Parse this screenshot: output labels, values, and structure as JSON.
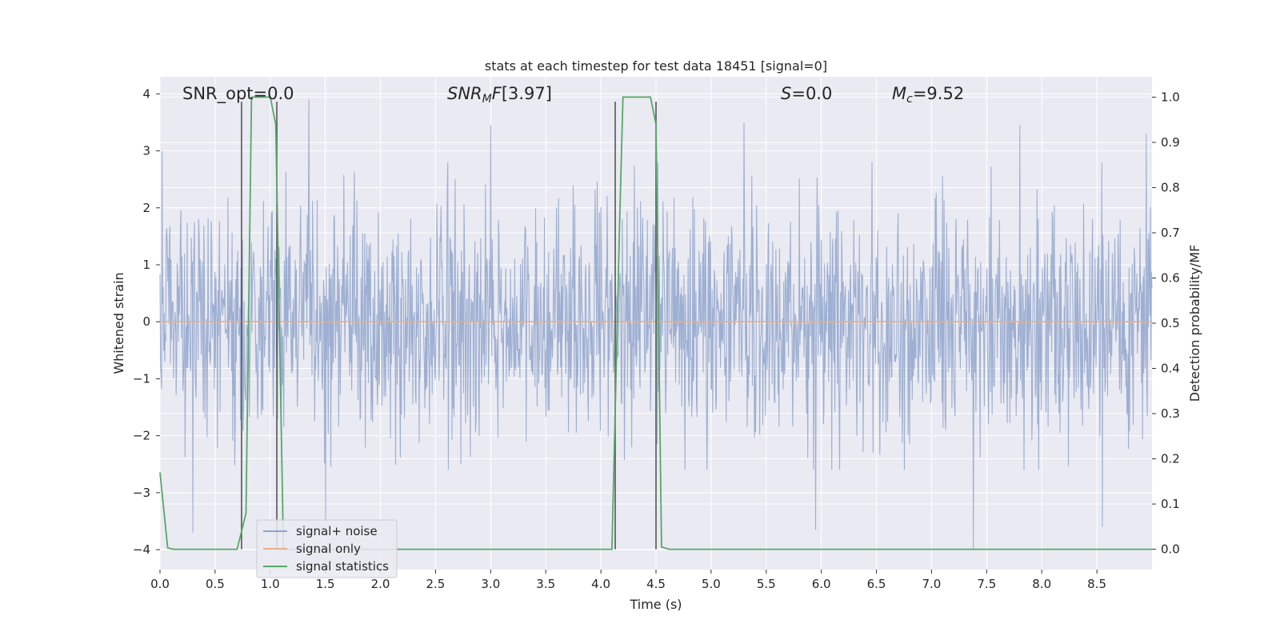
{
  "chart_data": {
    "type": "line",
    "title": "stats at each timestep for test data 18451 [signal=0]",
    "xlabel": "Time (s)",
    "ylabel_left": "Whitened strain",
    "ylabel_right": "Detection probability/MF",
    "xlim": [
      0,
      9.0
    ],
    "ylim_left": [
      -4.35,
      4.3
    ],
    "ylim_right": [
      -0.045,
      1.045
    ],
    "x_ticks": [
      "0.0",
      "0.5",
      "1.0",
      "1.5",
      "2.0",
      "2.5",
      "3.0",
      "3.5",
      "4.0",
      "4.5",
      "5.0",
      "5.5",
      "6.0",
      "6.5",
      "7.0",
      "7.5",
      "8.0",
      "8.5"
    ],
    "y_ticks_left": [
      "−4",
      "−3",
      "−2",
      "−1",
      "0",
      "1",
      "2",
      "3",
      "4"
    ],
    "y_ticks_right": [
      "0.0",
      "0.1",
      "0.2",
      "0.3",
      "0.4",
      "0.5",
      "0.6",
      "0.7",
      "0.8",
      "0.9",
      "1.0"
    ],
    "grid": true,
    "legend_position": "lower-left",
    "annotations": {
      "snr_opt": "SNR_opt=0.0",
      "snr_mf": "[3.97]",
      "s_value": "=0.0",
      "mc_value": "=9.52"
    },
    "series": [
      {
        "name": "signal+ noise",
        "axis": "left",
        "color": "#8fa4cc",
        "description": "whitened noise trace, roughly within -2 to +2.5 with spikes to ±4",
        "peaks": [
          {
            "x": 0.02,
            "y": 3.0
          },
          {
            "x": 0.3,
            "y": 3.05
          },
          {
            "x": 1.35,
            "y": 3.9
          },
          {
            "x": 3.0,
            "y": 3.45
          },
          {
            "x": 5.3,
            "y": 3.5
          },
          {
            "x": 7.8,
            "y": 3.45
          },
          {
            "x": 8.95,
            "y": 3.3
          },
          {
            "x": 0.3,
            "y": -3.7
          },
          {
            "x": 1.5,
            "y": -3.5
          },
          {
            "x": 5.95,
            "y": -3.65
          },
          {
            "x": 7.38,
            "y": -4.0
          },
          {
            "x": 8.55,
            "y": -3.6
          }
        ]
      },
      {
        "name": "signal only",
        "axis": "left",
        "color": "#e5ae8c",
        "x": [
          0,
          9.0
        ],
        "y": [
          0,
          0
        ]
      },
      {
        "name": "signal statistics",
        "axis": "right",
        "color": "#55a868",
        "x": [
          0,
          0.07,
          0.12,
          0.7,
          0.78,
          0.83,
          1.0,
          1.05,
          1.12,
          4.1,
          4.17,
          4.2,
          4.45,
          4.5,
          4.55,
          4.62,
          9.0
        ],
        "y": [
          0.17,
          0.003,
          0.0,
          0.0,
          0.08,
          1.0,
          1.0,
          0.94,
          0.0,
          0.0,
          0.72,
          1.0,
          1.0,
          0.94,
          0.005,
          0.0,
          0.0
        ]
      }
    ],
    "detection_markers": [
      {
        "x": 0.74,
        "y_top": 0.99
      },
      {
        "x": 1.06,
        "y_top": 0.99
      },
      {
        "x": 4.13,
        "y_top": 0.99
      },
      {
        "x": 4.5,
        "y_top": 0.99
      }
    ],
    "colors": {
      "plot_background": "#eaeaf2",
      "grid": "#ffffff",
      "marker": "#555555"
    }
  }
}
